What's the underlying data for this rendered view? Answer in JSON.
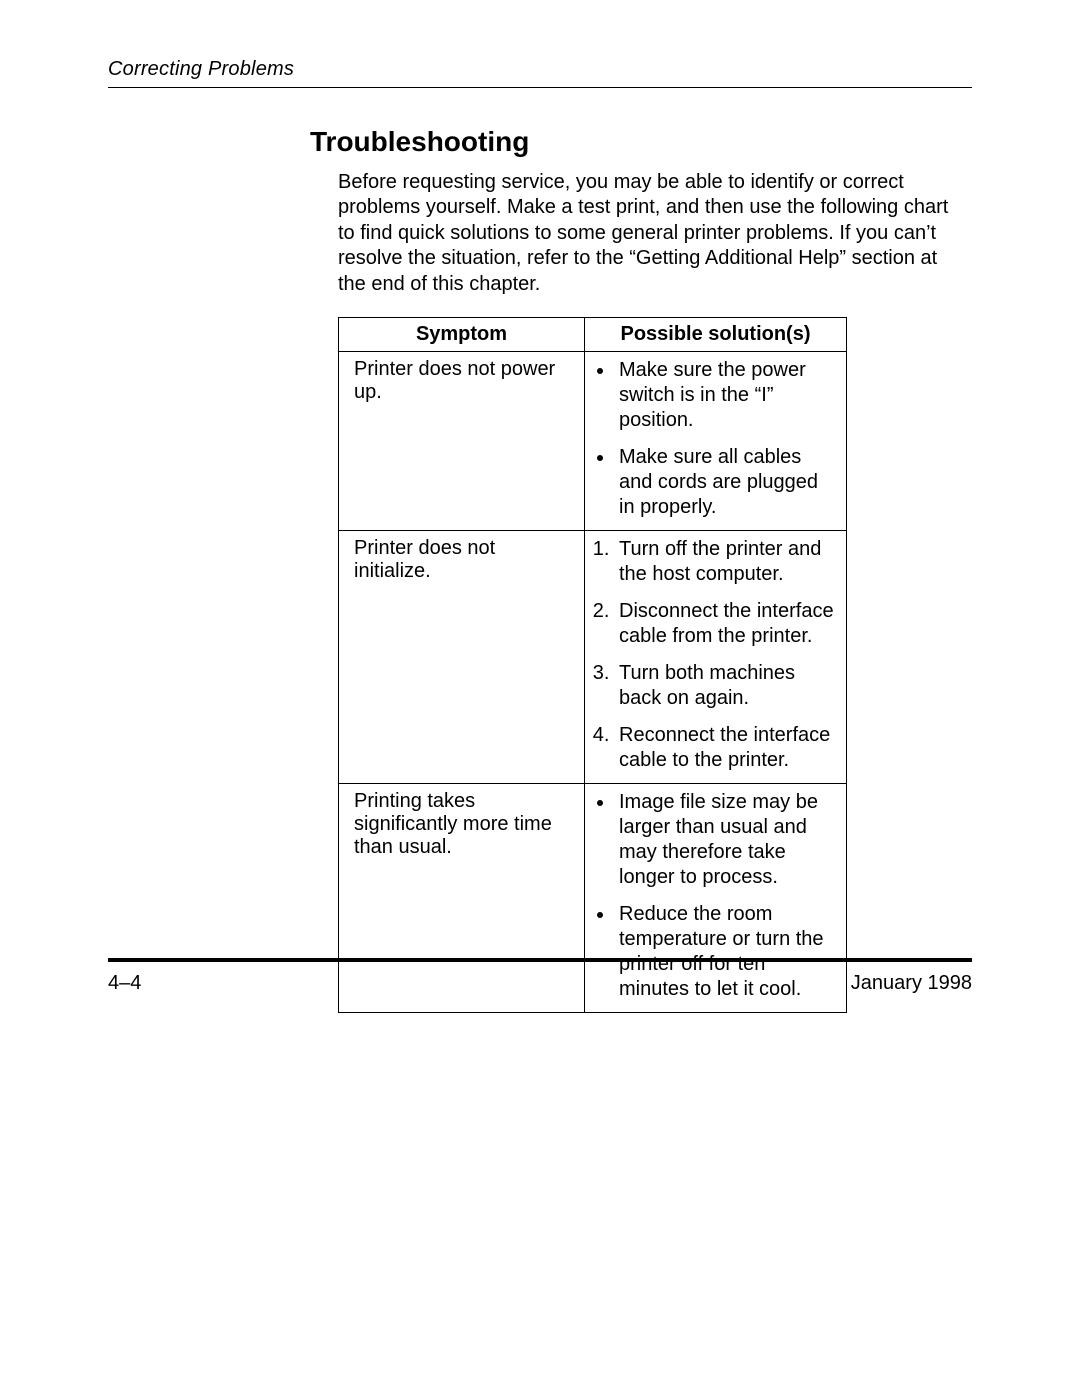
{
  "running_head": "Correcting Problems",
  "section_title": "Troubleshooting",
  "intro_text": "Before requesting service, you may be able to identify or correct problems yourself. Make a test print, and then use the following chart to find quick solutions to some general printer problems. If you can’t resolve the situation, refer to the “Getting Additional Help” section at the end of this chapter.",
  "table": {
    "headers": {
      "symptom": "Symptom",
      "solution": "Possible solution(s)"
    },
    "rows": [
      {
        "symptom": "Printer does not power up.",
        "list_type": "ul",
        "items": [
          "Make sure the power switch is in the “I” position.",
          "Make sure all cables and cords are plugged in properly."
        ]
      },
      {
        "symptom": "Printer does not initialize.",
        "list_type": "ol",
        "items": [
          "Turn off the printer and the host computer.",
          "Disconnect the interface cable from the printer.",
          "Turn both machines back on again.",
          "Reconnect the interface cable to the printer."
        ]
      },
      {
        "symptom": "Printing takes significantly more time than usual.",
        "list_type": "ul",
        "items": [
          "Image file size may be larger than usual and may therefore take longer to process.",
          "Reduce the room temperature or turn the printer off for ten minutes to let it cool."
        ]
      }
    ]
  },
  "footer": {
    "page_num": "4–4",
    "date": "January 1998"
  }
}
